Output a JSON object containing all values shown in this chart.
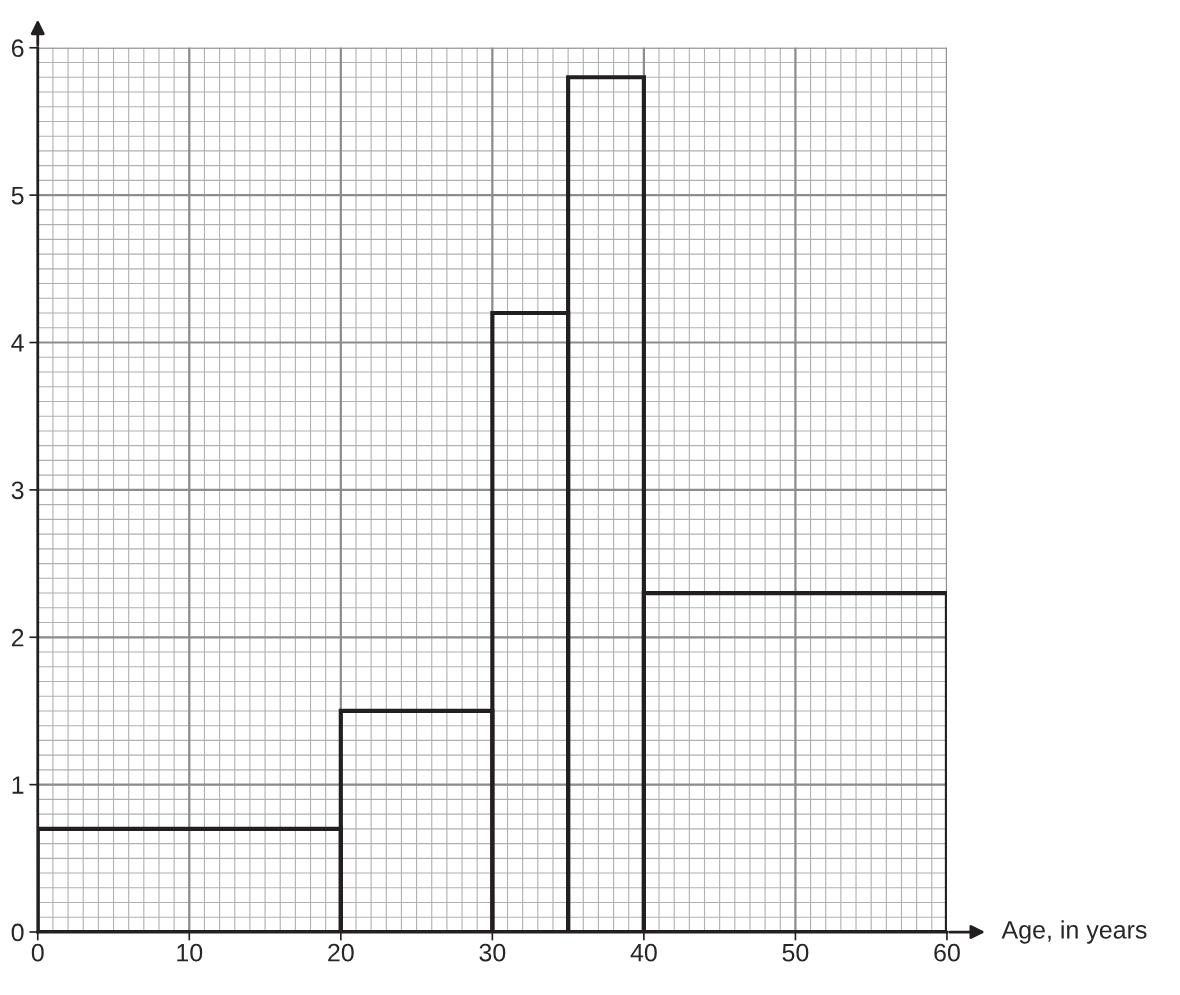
{
  "chart_data": {
    "type": "histogram",
    "xlabel": "Age, in years",
    "bins": [
      0,
      20,
      30,
      35,
      40,
      60
    ],
    "values": [
      0.7,
      1.5,
      4.2,
      5.8,
      2.3
    ],
    "color": "#231f20",
    "xlim": [
      0,
      60
    ],
    "xticks": [
      0,
      10,
      20,
      30,
      40,
      50,
      60
    ],
    "ylim": [
      0,
      6
    ],
    "yticks": [
      0,
      1,
      2,
      3,
      4,
      5,
      6
    ],
    "grid": true
  }
}
